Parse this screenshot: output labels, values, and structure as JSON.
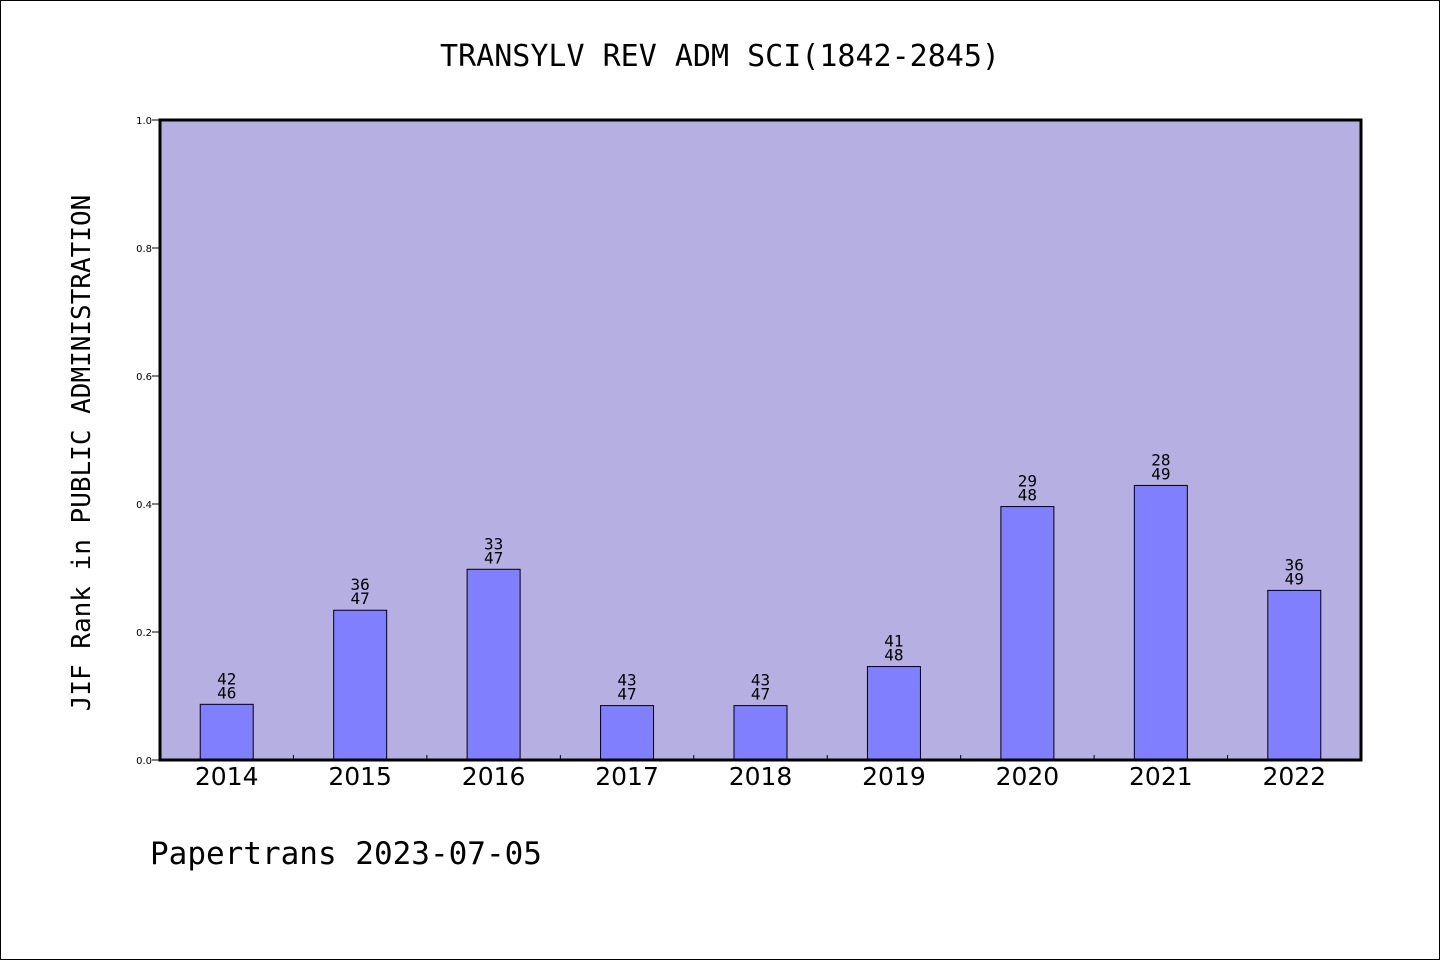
{
  "chart_data": {
    "type": "bar",
    "title": "TRANSYLV REV ADM SCI(1842-2845)",
    "xlabel": "",
    "ylabel": "JIF Rank in PUBLIC ADMINISTRATION",
    "categories": [
      "2014",
      "2015",
      "2016",
      "2017",
      "2018",
      "2019",
      "2020",
      "2021",
      "2022"
    ],
    "values": [
      0.087,
      0.234,
      0.298,
      0.085,
      0.085,
      0.146,
      0.396,
      0.429,
      0.265
    ],
    "bar_labels": [
      {
        "rank": "42",
        "total": "46"
      },
      {
        "rank": "36",
        "total": "47"
      },
      {
        "rank": "33",
        "total": "47"
      },
      {
        "rank": "43",
        "total": "47"
      },
      {
        "rank": "43",
        "total": "47"
      },
      {
        "rank": "41",
        "total": "48"
      },
      {
        "rank": "29",
        "total": "48"
      },
      {
        "rank": "28",
        "total": "49"
      },
      {
        "rank": "36",
        "total": "49"
      }
    ],
    "ylim": [
      0,
      1.0
    ],
    "yticks": [
      "0.0",
      "0.2",
      "0.4",
      "0.6",
      "0.8",
      "1.0"
    ],
    "grid": false,
    "colors": {
      "plot_background": "#b6b0e2",
      "bar_fill": "#8080ff",
      "bar_stroke": "#000000"
    }
  },
  "footer": {
    "text": "Papertrans 2023-07-05"
  }
}
